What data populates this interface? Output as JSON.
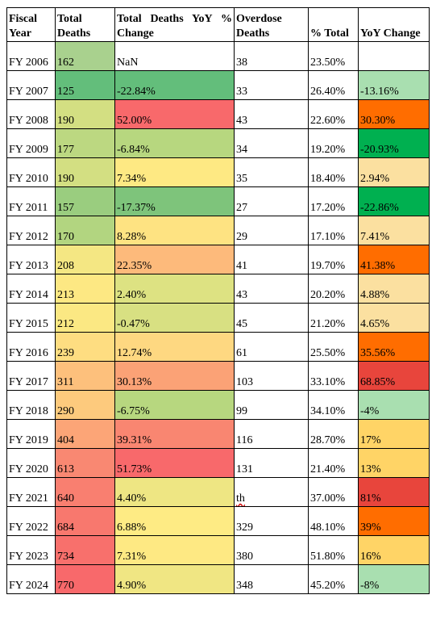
{
  "headers": {
    "fiscal_year": "Fiscal Year",
    "total_deaths": "Total Deaths",
    "yoy_pct": "Total Deaths YoY % Change",
    "overdose": "Overdose Deaths",
    "pct_total": "% Total",
    "yoy_change": "YoY Change"
  },
  "rows": [
    {
      "year": "FY 2006",
      "deaths": "162",
      "deaths_color": "#a9d18e",
      "yoy": "NaN",
      "yoy_color": "#ffffff",
      "overdose": "38",
      "pct": "23.50%",
      "chg": "",
      "chg_color": "#ffffff"
    },
    {
      "year": "FY 2007",
      "deaths": "125",
      "deaths_color": "#63be7b",
      "yoy": "-22.84%",
      "yoy_color": "#63be7b",
      "overdose": "33",
      "pct": "26.40%",
      "chg": "-13.16%",
      "chg_color": "#a9dfb0"
    },
    {
      "year": "FY 2008",
      "deaths": "190",
      "deaths_color": "#d3df82",
      "yoy": "52.00%",
      "yoy_color": "#f8696b",
      "overdose": "43",
      "pct": "22.60%",
      "chg": "30.30%",
      "chg_color": "#ff6d00"
    },
    {
      "year": "FY 2009",
      "deaths": "177",
      "deaths_color": "#bcd881",
      "yoy": "-6.84%",
      "yoy_color": "#b7d77f",
      "overdose": "34",
      "pct": "19.20%",
      "chg": "-20.93%",
      "chg_color": "#00b050"
    },
    {
      "year": "FY 2010",
      "deaths": "190",
      "deaths_color": "#d3df82",
      "yoy": "7.34%",
      "yoy_color": "#fee983",
      "overdose": "35",
      "pct": "18.40%",
      "chg": "2.94%",
      "chg_color": "#fbe0a0"
    },
    {
      "year": "FY 2011",
      "deaths": "157",
      "deaths_color": "#9acd7f",
      "yoy": "-17.37%",
      "yoy_color": "#7ec47b",
      "overdose": "27",
      "pct": "17.20%",
      "chg": "-22.86%",
      "chg_color": "#00b050"
    },
    {
      "year": "FY 2012",
      "deaths": "170",
      "deaths_color": "#b2d580",
      "yoy": "8.28%",
      "yoy_color": "#fee382",
      "overdose": "29",
      "pct": "17.10%",
      "chg": "7.41%",
      "chg_color": "#fbe0a0"
    },
    {
      "year": "FY 2013",
      "deaths": "208",
      "deaths_color": "#f4e783",
      "yoy": "22.35%",
      "yoy_color": "#fdba7b",
      "overdose": "41",
      "pct": "19.70%",
      "chg": "41.38%",
      "chg_color": "#ff6d00"
    },
    {
      "year": "FY 2014",
      "deaths": "213",
      "deaths_color": "#fde883",
      "yoy": "2.40%",
      "yoy_color": "#dde282",
      "overdose": "43",
      "pct": "20.20%",
      "chg": "4.88%",
      "chg_color": "#fbe0a0"
    },
    {
      "year": "FY 2015",
      "deaths": "212",
      "deaths_color": "#fbe883",
      "yoy": "-0.47%",
      "yoy_color": "#d8e082",
      "overdose": "45",
      "pct": "21.20%",
      "chg": "4.65%",
      "chg_color": "#fbe0a0"
    },
    {
      "year": "FY 2016",
      "deaths": "239",
      "deaths_color": "#fedd81",
      "yoy": "12.74%",
      "yoy_color": "#fed881",
      "overdose": "61",
      "pct": "25.50%",
      "chg": "35.56%",
      "chg_color": "#ff6d00"
    },
    {
      "year": "FY 2017",
      "deaths": "311",
      "deaths_color": "#fdc07c",
      "yoy": "30.13%",
      "yoy_color": "#fba276",
      "overdose": "103",
      "pct": "33.10%",
      "chg": "68.85%",
      "chg_color": "#e8453c"
    },
    {
      "year": "FY 2018",
      "deaths": "290",
      "deaths_color": "#fdca7d",
      "yoy": "-6.75%",
      "yoy_color": "#b7d77f",
      "overdose": "99",
      "pct": "34.10%",
      "chg": "-4%",
      "chg_color": "#a9dfb0"
    },
    {
      "year": "FY 2019",
      "deaths": "404",
      "deaths_color": "#fca577",
      "yoy": "39.31%",
      "yoy_color": "#f98671",
      "overdose": "116",
      "pct": "28.70%",
      "chg": "17%",
      "chg_color": "#ffd466"
    },
    {
      "year": "FY 2020",
      "deaths": "613",
      "deaths_color": "#f98872",
      "yoy": "51.73%",
      "yoy_color": "#f8696b",
      "overdose": "131",
      "pct": "21.40%",
      "chg": "13%",
      "chg_color": "#ffd466"
    },
    {
      "year": "FY 2021",
      "deaths": "640",
      "deaths_color": "#f97f70",
      "yoy": "4.40%",
      "yoy_color": "#eee683",
      "overdose": "th",
      "pct": "37.00%",
      "chg": "81%",
      "chg_color": "#e8453c"
    },
    {
      "year": "FY 2022",
      "deaths": "684",
      "deaths_color": "#f8786e",
      "yoy": "6.88%",
      "yoy_color": "#feeb84",
      "overdose": "329",
      "pct": "48.10%",
      "chg": "39%",
      "chg_color": "#ff6d00"
    },
    {
      "year": "FY 2023",
      "deaths": "734",
      "deaths_color": "#f8706c",
      "yoy": "7.31%",
      "yoy_color": "#fee983",
      "overdose": "380",
      "pct": "51.80%",
      "chg": "16%",
      "chg_color": "#ffd466"
    },
    {
      "year": "FY 2024",
      "deaths": "770",
      "deaths_color": "#f8696b",
      "yoy": "4.90%",
      "yoy_color": "#f0e683",
      "overdose": "348",
      "pct": "45.20%",
      "chg": "-8%",
      "chg_color": "#a9dfb0"
    }
  ]
}
